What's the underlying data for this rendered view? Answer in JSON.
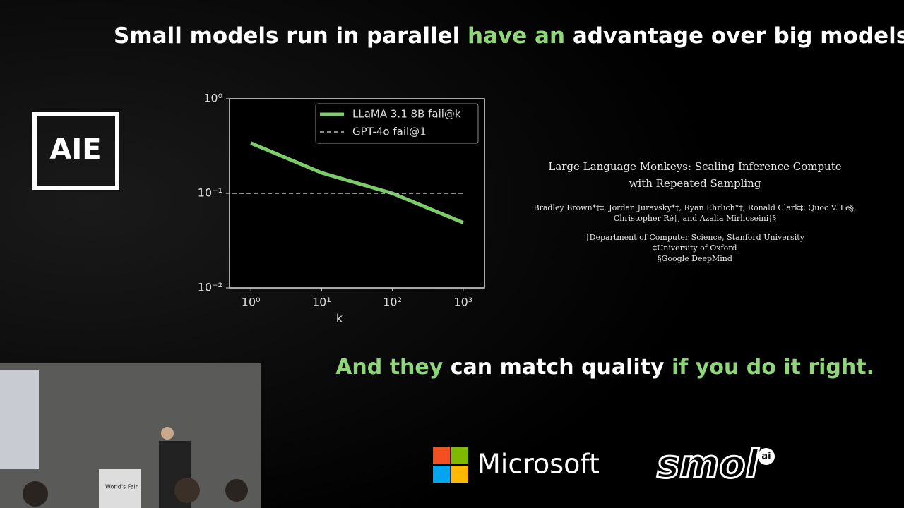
{
  "headline": [
    {
      "text": "Small models run in parallel ",
      "color": "#ffffff"
    },
    {
      "text": "have an",
      "color": "#8fd67a"
    },
    {
      "text": " advantage over big models",
      "color": "#ffffff"
    },
    {
      "text": ".",
      "color": "#8fd67a"
    }
  ],
  "tagline": [
    {
      "text": "And they",
      "color": "#8fd67a"
    },
    {
      "text": " can match quality ",
      "color": "#ffffff"
    },
    {
      "text": "if you do it right.",
      "color": "#8fd67a"
    }
  ],
  "logo": "AIE",
  "paper": {
    "title": [
      "Large Language Monkeys: Scaling Inference Compute",
      "with Repeated Sampling"
    ],
    "authors": [
      "Bradley Brown*†‡, Jordan Juravsky*†, Ryan Ehrlich*†, Ronald Clark‡, Quoc V. Le§,",
      "Christopher Ré†, and Azalia Mirhoseini†§"
    ],
    "affiliations": [
      "†Department of Computer Science, Stanford University",
      "‡University of Oxford",
      "§Google DeepMind"
    ]
  },
  "sponsors": {
    "microsoft": "Microsoft",
    "smol": "smol",
    "smol_badge": "ai"
  },
  "camera": {
    "podium": "World's Fair"
  },
  "chart_data": {
    "type": "line",
    "xlabel": "k",
    "log_x": true,
    "log_y": true,
    "xlim": [
      0.5,
      2000
    ],
    "ylim": [
      0.01,
      1
    ],
    "xticks": [
      {
        "value": 1,
        "label": "10⁰"
      },
      {
        "value": 10,
        "label": "10¹"
      },
      {
        "value": 100,
        "label": "10²"
      },
      {
        "value": 1000,
        "label": "10³"
      }
    ],
    "yticks": [
      {
        "value": 0.01,
        "label": "10⁻²"
      },
      {
        "value": 0.1,
        "label": "10⁻¹"
      },
      {
        "value": 1,
        "label": "10⁰"
      }
    ],
    "legend": "upper right",
    "series": [
      {
        "name": "LLaMA 3.1 8B fail@k",
        "color": "#7ccc6a",
        "style": "solid",
        "x": [
          1,
          10,
          100,
          1000
        ],
        "values": [
          0.34,
          0.165,
          0.1,
          0.049
        ]
      },
      {
        "name": "GPT-4o fail@1",
        "color": "#bbbbbb",
        "style": "dashed",
        "x": [
          0.55,
          1000
        ],
        "values": [
          0.1,
          0.1
        ]
      }
    ]
  }
}
